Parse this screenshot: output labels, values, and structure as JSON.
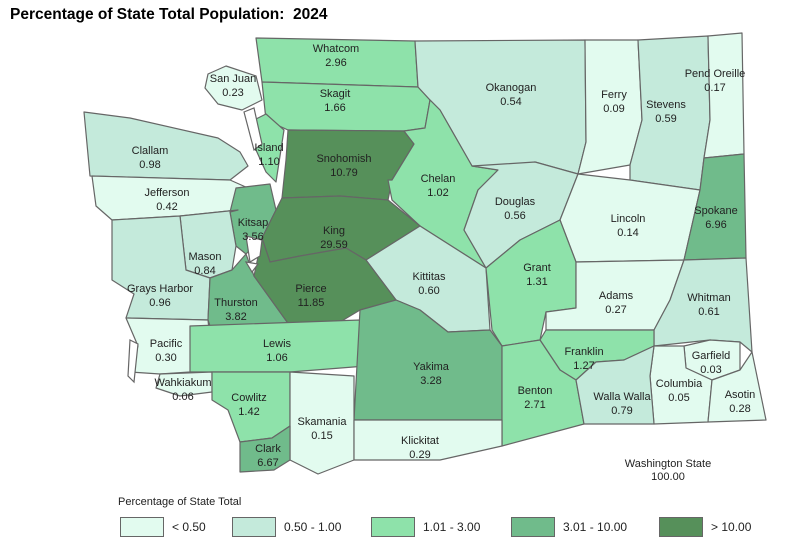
{
  "title": "Percentage of State Total Population:  2024",
  "state": {
    "name": "Washington State",
    "total": "100.00"
  },
  "legend": {
    "title": "Percentage of State Total",
    "items": [
      {
        "label": "< 0.50",
        "color": "#e2fbef"
      },
      {
        "label": "0.50 - 1.00",
        "color": "#c4eadb"
      },
      {
        "label": "1.01 - 3.00",
        "color": "#8ee2aa"
      },
      {
        "label": "3.01 - 10.00",
        "color": "#70bb8b"
      },
      {
        "label": "> 10.00",
        "color": "#56905a"
      }
    ]
  },
  "counties": [
    {
      "name": "Whatcom",
      "value": "2.96",
      "class": 2
    },
    {
      "name": "San Juan",
      "value": "0.23",
      "class": 0
    },
    {
      "name": "Skagit",
      "value": "1.66",
      "class": 2
    },
    {
      "name": "Okanogan",
      "value": "0.54",
      "class": 1
    },
    {
      "name": "Ferry",
      "value": "0.09",
      "class": 0
    },
    {
      "name": "Stevens",
      "value": "0.59",
      "class": 1
    },
    {
      "name": "Pend Oreille",
      "value": "0.17",
      "class": 0
    },
    {
      "name": "Clallam",
      "value": "0.98",
      "class": 1
    },
    {
      "name": "Island",
      "value": "1.10",
      "class": 2
    },
    {
      "name": "Snohomish",
      "value": "10.79",
      "class": 4
    },
    {
      "name": "Chelan",
      "value": "1.02",
      "class": 2
    },
    {
      "name": "Jefferson",
      "value": "0.42",
      "class": 0
    },
    {
      "name": "Douglas",
      "value": "0.56",
      "class": 1
    },
    {
      "name": "Lincoln",
      "value": "0.14",
      "class": 0
    },
    {
      "name": "Spokane",
      "value": "6.96",
      "class": 3
    },
    {
      "name": "Kitsap",
      "value": "3.56",
      "class": 3
    },
    {
      "name": "King",
      "value": "29.59",
      "class": 4
    },
    {
      "name": "Mason",
      "value": "0.84",
      "class": 1
    },
    {
      "name": "Grays Harbor",
      "value": "0.96",
      "class": 1
    },
    {
      "name": "Kittitas",
      "value": "0.60",
      "class": 1
    },
    {
      "name": "Grant",
      "value": "1.31",
      "class": 2
    },
    {
      "name": "Adams",
      "value": "0.27",
      "class": 0
    },
    {
      "name": "Whitman",
      "value": "0.61",
      "class": 1
    },
    {
      "name": "Thurston",
      "value": "3.82",
      "class": 3
    },
    {
      "name": "Pierce",
      "value": "11.85",
      "class": 4
    },
    {
      "name": "Pacific",
      "value": "0.30",
      "class": 0
    },
    {
      "name": "Lewis",
      "value": "1.06",
      "class": 2
    },
    {
      "name": "Yakima",
      "value": "3.28",
      "class": 3
    },
    {
      "name": "Franklin",
      "value": "1.27",
      "class": 2
    },
    {
      "name": "Garfield",
      "value": "0.03",
      "class": 0
    },
    {
      "name": "Wahkiakum",
      "value": "0.06",
      "class": 0
    },
    {
      "name": "Columbia",
      "value": "0.05",
      "class": 0
    },
    {
      "name": "Cowlitz",
      "value": "1.42",
      "class": 2
    },
    {
      "name": "Benton",
      "value": "2.71",
      "class": 2
    },
    {
      "name": "Walla Walla",
      "value": "0.79",
      "class": 1
    },
    {
      "name": "Asotin",
      "value": "0.28",
      "class": 0
    },
    {
      "name": "Skamania",
      "value": "0.15",
      "class": 0
    },
    {
      "name": "Klickitat",
      "value": "0.29",
      "class": 0
    },
    {
      "name": "Clark",
      "value": "6.67",
      "class": 3
    }
  ]
}
